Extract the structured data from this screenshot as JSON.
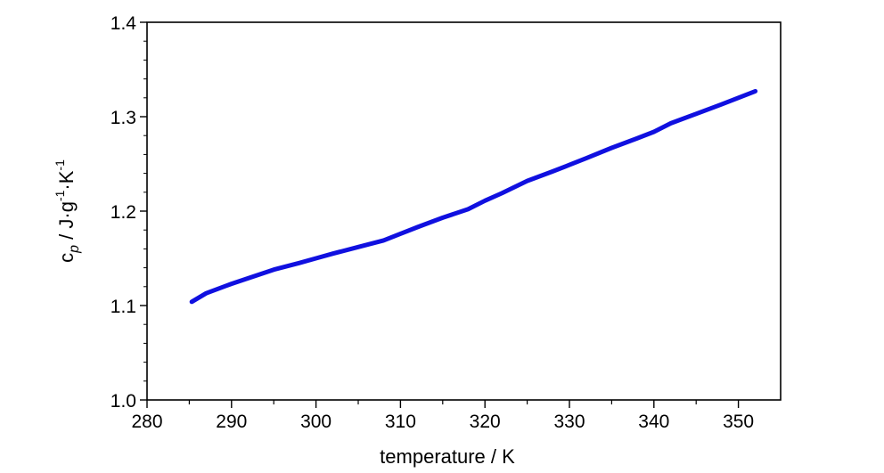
{
  "chart_data": {
    "type": "line",
    "title": "",
    "xlabel": "temperature / K",
    "ylabel": {
      "symbol": "c",
      "subscript": "p",
      "units_main": " / J·g",
      "exp1": "-1",
      "middot": "·K",
      "exp2": "-1"
    },
    "xlim": [
      280,
      355
    ],
    "ylim": [
      1.0,
      1.4
    ],
    "xticks": [
      280,
      290,
      300,
      310,
      320,
      330,
      340,
      350
    ],
    "xtick_labels": [
      "280",
      "290",
      "300",
      "310",
      "320",
      "330",
      "340",
      "350"
    ],
    "yticks": [
      1.0,
      1.1,
      1.2,
      1.3,
      1.4
    ],
    "ytick_labels": [
      "1.0",
      "1.1",
      "1.2",
      "1.3",
      "1.4"
    ],
    "grid": false,
    "legend": "none",
    "series": [
      {
        "color": "#1010e0",
        "x": [
          285.3,
          287,
          290,
          292,
          295,
          298,
          300,
          302,
          305,
          308,
          310,
          312,
          315,
          318,
          320,
          322,
          325,
          328,
          330,
          332,
          335,
          338,
          340,
          342,
          345,
          348,
          350,
          352
        ],
        "y": [
          1.104,
          1.113,
          1.123,
          1.129,
          1.138,
          1.145,
          1.15,
          1.155,
          1.162,
          1.169,
          1.176,
          1.183,
          1.193,
          1.202,
          1.211,
          1.219,
          1.232,
          1.242,
          1.249,
          1.256,
          1.267,
          1.277,
          1.284,
          1.293,
          1.303,
          1.313,
          1.32,
          1.327
        ]
      }
    ]
  }
}
